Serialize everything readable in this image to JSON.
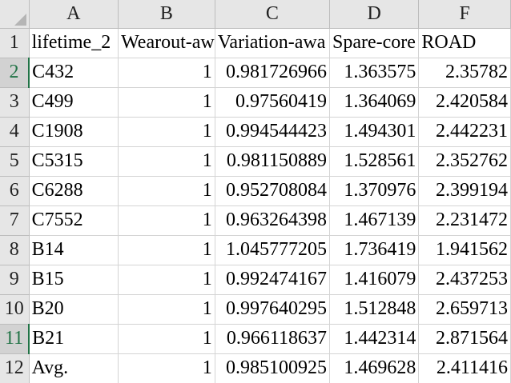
{
  "columns": [
    {
      "letter": ""
    },
    {
      "letter": "A"
    },
    {
      "letter": "B"
    },
    {
      "letter": "C"
    },
    {
      "letter": "D"
    },
    {
      "letter": "F"
    }
  ],
  "rows": [
    {
      "num": "1",
      "cells": [
        "lifetime_2",
        "Wearout-aw",
        "Variation-awa",
        "Spare-core",
        "ROAD"
      ]
    },
    {
      "num": "2",
      "cells": [
        "C432",
        "1",
        "0.981726966",
        "1.363575",
        "2.35782"
      ]
    },
    {
      "num": "3",
      "cells": [
        "C499",
        "1",
        "0.97560419",
        "1.364069",
        "2.420584"
      ]
    },
    {
      "num": "4",
      "cells": [
        "C1908",
        "1",
        "0.994544423",
        "1.494301",
        "2.442231"
      ]
    },
    {
      "num": "5",
      "cells": [
        "C5315",
        "1",
        "0.981150889",
        "1.528561",
        "2.352762"
      ]
    },
    {
      "num": "6",
      "cells": [
        "C6288",
        "1",
        "0.952708084",
        "1.370976",
        "2.399194"
      ]
    },
    {
      "num": "7",
      "cells": [
        "C7552",
        "1",
        "0.963264398",
        "1.467139",
        "2.231472"
      ]
    },
    {
      "num": "8",
      "cells": [
        "B14",
        "1",
        "1.045777205",
        "1.736419",
        "1.941562"
      ]
    },
    {
      "num": "9",
      "cells": [
        "B15",
        "1",
        "0.992474167",
        "1.416079",
        "2.437253"
      ]
    },
    {
      "num": "10",
      "cells": [
        "B20",
        "1",
        "0.997640295",
        "1.512848",
        "2.659713"
      ]
    },
    {
      "num": "11",
      "cells": [
        "B21",
        "1",
        "0.966118637",
        "1.442314",
        "2.871564"
      ]
    },
    {
      "num": "12",
      "cells": [
        "Avg.",
        "1",
        "0.985100925",
        "1.469628",
        "2.411416"
      ]
    }
  ],
  "active_rows": [
    "2",
    "11"
  ],
  "colors": {
    "header_bg": "#e6e6e6",
    "grid_line": "#d4d4d4",
    "active_accent": "#217346"
  }
}
